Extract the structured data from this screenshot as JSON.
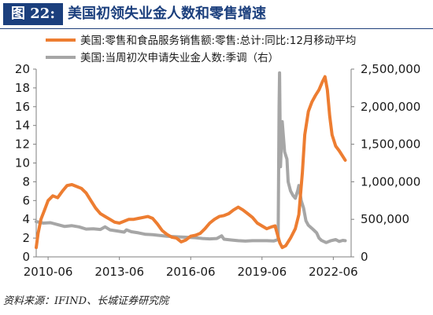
{
  "header": {
    "tag": "图 22:",
    "title": "美国初领失业金人数和零售增速"
  },
  "footer": {
    "source": "资料来源：IFIND、长城证券研究院"
  },
  "colors": {
    "retail": "#ed7d31",
    "claims": "#a6a6a6",
    "brand": "#1b3f7d"
  },
  "chart_data": {
    "type": "line",
    "left_axis": {
      "ylim": [
        0,
        20
      ],
      "ticks": [
        "0",
        "2",
        "4",
        "6",
        "8",
        "10",
        "12",
        "14",
        "16",
        "18",
        "20"
      ]
    },
    "right_axis": {
      "ylim": [
        0,
        2500000
      ],
      "ticks": [
        "0",
        "500,000",
        "1,000,000",
        "1,500,000",
        "2,000,000",
        "2,500,000"
      ]
    },
    "x_axis": {
      "range": [
        2010.0,
        2023.25
      ],
      "tick_values": [
        2010.5,
        2013.5,
        2016.5,
        2019.5,
        2022.5
      ],
      "tick_labels": [
        "2010-06",
        "2013-06",
        "2016-06",
        "2019-06",
        "2022-06"
      ]
    },
    "legend": "top",
    "series": [
      {
        "name": "美国:零售和食品服务销售额:零售:总计:同比:12月移动平均",
        "axis": "left",
        "color": "#ed7d31",
        "points": [
          [
            2010.0,
            1.0
          ],
          [
            2010.08,
            2.5
          ],
          [
            2010.2,
            4.0
          ],
          [
            2010.35,
            5.0
          ],
          [
            2010.5,
            6.0
          ],
          [
            2010.7,
            6.5
          ],
          [
            2010.9,
            6.3
          ],
          [
            2011.1,
            7.0
          ],
          [
            2011.3,
            7.6
          ],
          [
            2011.5,
            7.7
          ],
          [
            2011.7,
            7.5
          ],
          [
            2011.9,
            7.3
          ],
          [
            2012.1,
            6.8
          ],
          [
            2012.3,
            6.0
          ],
          [
            2012.5,
            5.2
          ],
          [
            2012.7,
            4.6
          ],
          [
            2012.9,
            4.3
          ],
          [
            2013.1,
            4.0
          ],
          [
            2013.3,
            3.7
          ],
          [
            2013.5,
            3.6
          ],
          [
            2013.7,
            3.8
          ],
          [
            2013.9,
            4.0
          ],
          [
            2014.1,
            4.0
          ],
          [
            2014.3,
            4.1
          ],
          [
            2014.5,
            4.2
          ],
          [
            2014.7,
            4.3
          ],
          [
            2014.9,
            4.1
          ],
          [
            2015.1,
            3.5
          ],
          [
            2015.3,
            2.8
          ],
          [
            2015.5,
            2.4
          ],
          [
            2015.7,
            2.1
          ],
          [
            2015.9,
            2.0
          ],
          [
            2016.1,
            1.6
          ],
          [
            2016.3,
            1.8
          ],
          [
            2016.5,
            2.2
          ],
          [
            2016.7,
            2.3
          ],
          [
            2016.9,
            2.5
          ],
          [
            2017.1,
            3.0
          ],
          [
            2017.3,
            3.6
          ],
          [
            2017.5,
            4.0
          ],
          [
            2017.7,
            4.3
          ],
          [
            2017.9,
            4.4
          ],
          [
            2018.1,
            4.6
          ],
          [
            2018.3,
            5.0
          ],
          [
            2018.5,
            5.3
          ],
          [
            2018.7,
            5.0
          ],
          [
            2018.9,
            4.6
          ],
          [
            2019.1,
            4.2
          ],
          [
            2019.3,
            3.6
          ],
          [
            2019.5,
            3.3
          ],
          [
            2019.7,
            3.0
          ],
          [
            2019.9,
            3.2
          ],
          [
            2020.05,
            3.3
          ],
          [
            2020.25,
            1.5
          ],
          [
            2020.35,
            1.0
          ],
          [
            2020.5,
            1.2
          ],
          [
            2020.7,
            2.0
          ],
          [
            2020.9,
            3.0
          ],
          [
            2021.05,
            4.5
          ],
          [
            2021.2,
            9.0
          ],
          [
            2021.3,
            13.0
          ],
          [
            2021.45,
            15.5
          ],
          [
            2021.6,
            16.5
          ],
          [
            2021.75,
            17.2
          ],
          [
            2021.9,
            17.8
          ],
          [
            2022.05,
            18.7
          ],
          [
            2022.15,
            19.2
          ],
          [
            2022.25,
            17.8
          ],
          [
            2022.35,
            15.0
          ],
          [
            2022.45,
            13.0
          ],
          [
            2022.6,
            11.8
          ],
          [
            2022.75,
            11.3
          ],
          [
            2022.9,
            10.7
          ],
          [
            2023.0,
            10.3
          ]
        ]
      },
      {
        "name": "美国:当周初次申请失业金人数:季调（右）",
        "axis": "right",
        "color": "#a6a6a6",
        "points": [
          [
            2010.0,
            470000
          ],
          [
            2010.3,
            450000
          ],
          [
            2010.6,
            455000
          ],
          [
            2010.9,
            430000
          ],
          [
            2011.2,
            405000
          ],
          [
            2011.5,
            415000
          ],
          [
            2011.8,
            400000
          ],
          [
            2012.1,
            370000
          ],
          [
            2012.4,
            375000
          ],
          [
            2012.7,
            365000
          ],
          [
            2012.9,
            400000
          ],
          [
            2013.1,
            360000
          ],
          [
            2013.4,
            345000
          ],
          [
            2013.7,
            330000
          ],
          [
            2013.8,
            360000
          ],
          [
            2014.0,
            335000
          ],
          [
            2014.3,
            320000
          ],
          [
            2014.6,
            300000
          ],
          [
            2014.9,
            295000
          ],
          [
            2015.2,
            285000
          ],
          [
            2015.5,
            275000
          ],
          [
            2015.8,
            270000
          ],
          [
            2016.1,
            265000
          ],
          [
            2016.4,
            260000
          ],
          [
            2016.7,
            255000
          ],
          [
            2017.0,
            245000
          ],
          [
            2017.3,
            240000
          ],
          [
            2017.6,
            245000
          ],
          [
            2017.8,
            280000
          ],
          [
            2017.9,
            235000
          ],
          [
            2018.2,
            225000
          ],
          [
            2018.5,
            215000
          ],
          [
            2018.8,
            210000
          ],
          [
            2019.1,
            215000
          ],
          [
            2019.4,
            215000
          ],
          [
            2019.7,
            215000
          ],
          [
            2020.0,
            212000
          ],
          [
            2020.18,
            230000
          ],
          [
            2020.22,
            2000000
          ],
          [
            2020.24,
            2450000
          ],
          [
            2020.28,
            1200000
          ],
          [
            2020.35,
            1800000
          ],
          [
            2020.45,
            1400000
          ],
          [
            2020.55,
            1300000
          ],
          [
            2020.6,
            1000000
          ],
          [
            2020.7,
            880000
          ],
          [
            2020.8,
            820000
          ],
          [
            2020.9,
            780000
          ],
          [
            2021.0,
            880000
          ],
          [
            2021.05,
            950000
          ],
          [
            2021.15,
            750000
          ],
          [
            2021.25,
            650000
          ],
          [
            2021.35,
            480000
          ],
          [
            2021.45,
            420000
          ],
          [
            2021.6,
            380000
          ],
          [
            2021.7,
            350000
          ],
          [
            2021.8,
            320000
          ],
          [
            2021.9,
            250000
          ],
          [
            2022.0,
            220000
          ],
          [
            2022.2,
            190000
          ],
          [
            2022.4,
            215000
          ],
          [
            2022.6,
            230000
          ],
          [
            2022.75,
            205000
          ],
          [
            2022.9,
            220000
          ],
          [
            2023.0,
            215000
          ]
        ]
      }
    ]
  }
}
